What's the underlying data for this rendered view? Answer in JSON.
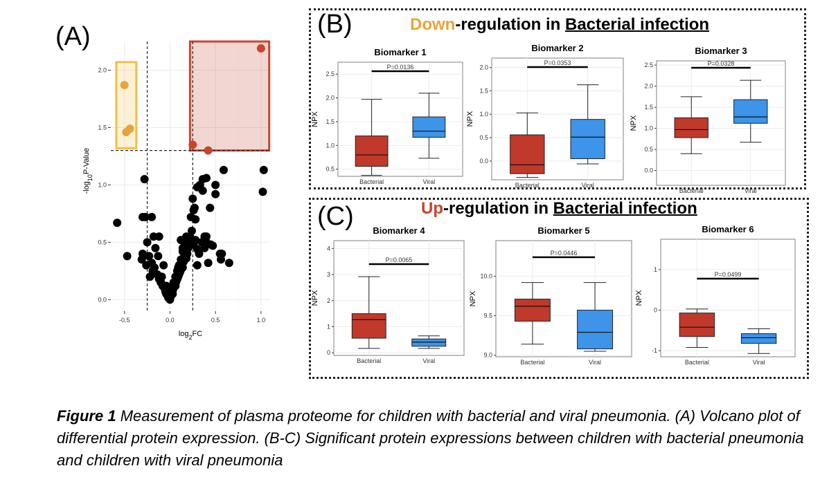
{
  "panel_labels": {
    "a": "(A)",
    "b": "(B)",
    "c": "(C)"
  },
  "section_b": {
    "highlight": "Down",
    "rest": "-regulation in ",
    "underlined": "Bacterial infection",
    "highlight_color": "#e6a53a"
  },
  "section_c": {
    "highlight": "Up",
    "rest": "-regulation in ",
    "underlined": "Bacterial infection",
    "highlight_color": "#c6452f"
  },
  "caption": {
    "lead": "Figure 1",
    "text": " Measurement of plasma proteome for children with bacterial and viral pneumonia. (A) Volcano plot of differential protein expression. (B-C) Significant protein expressions between children with bacterial pneumonia and children with viral pneumonia"
  },
  "colors": {
    "bacterial": "#c0392b",
    "viral": "#3d94e8",
    "down_box": "#f0c04a",
    "up_box": "#c6452f",
    "point": "#000000",
    "down_point": "#e6a53a",
    "up_point": "#c6452f"
  },
  "chart_data": [
    {
      "type": "scatter",
      "panel": "(A)",
      "xlabel": "log2FC",
      "ylabel": "-log10P-Value",
      "xlim": [
        -0.65,
        1.1
      ],
      "ylim": [
        -0.1,
        2.25
      ],
      "xticks": [
        -0.5,
        0.0,
        0.5,
        1.0
      ],
      "yticks": [
        0.0,
        0.5,
        1.0,
        1.5,
        2.0
      ],
      "xtick_labels": [
        "-0.5",
        "0.0",
        "0.5",
        "1.0"
      ],
      "ytick_labels": [
        "0.0",
        "0.5",
        "1.0",
        "1.5",
        "2.0"
      ],
      "thresholds": {
        "x": [
          -0.25,
          0.25
        ],
        "y": 1.3
      },
      "grid": true,
      "highlight_down": {
        "x": [
          -0.5,
          -0.48,
          -0.44
        ],
        "y": [
          1.87,
          1.46,
          1.49
        ]
      },
      "highlight_up": {
        "x": [
          1.0,
          0.25,
          0.42
        ],
        "y": [
          2.19,
          1.35,
          1.3
        ]
      },
      "points": {
        "x": [
          -0.58,
          -0.47,
          -0.3,
          -0.19,
          -0.26,
          -0.23,
          -0.31,
          -0.22,
          -0.2,
          -0.17,
          -0.14,
          -0.12,
          -0.1,
          -0.08,
          -0.06,
          -0.05,
          -0.04,
          -0.03,
          -0.02,
          -0.01,
          0.0,
          0.01,
          0.02,
          0.03,
          0.04,
          0.05,
          0.06,
          0.07,
          0.08,
          0.09,
          0.1,
          0.11,
          0.12,
          0.13,
          0.14,
          0.15,
          0.16,
          0.17,
          0.18,
          0.19,
          0.2,
          0.21,
          0.22,
          0.24,
          0.26,
          0.28,
          0.3,
          0.32,
          0.35,
          0.38,
          0.4,
          0.42,
          0.45,
          0.5,
          0.55,
          0.57,
          0.59,
          0.65,
          1.02,
          1.03,
          -0.28,
          -0.3,
          -0.25,
          -0.16,
          -0.12,
          -0.09,
          -0.07,
          -0.04,
          -0.02,
          0.0,
          0.02,
          0.04,
          0.06,
          0.08,
          0.1,
          0.12,
          0.14,
          0.16,
          0.18,
          0.2,
          0.23,
          0.25,
          0.27,
          0.3,
          0.33,
          0.36,
          0.4,
          0.44,
          -0.27,
          0.26,
          0.36,
          0.4,
          0.38,
          0.28,
          0.18,
          0.12,
          -0.2,
          -0.18,
          -0.1,
          0.06,
          0.15,
          0.22,
          0.3,
          0.47,
          0.5,
          0.56,
          -0.05,
          0.0,
          0.03,
          -0.13,
          0.09,
          0.14
        ],
        "y": [
          0.67,
          0.38,
          0.72,
          0.25,
          0.3,
          0.38,
          0.35,
          0.2,
          0.32,
          0.28,
          0.22,
          0.18,
          0.15,
          0.12,
          0.1,
          0.08,
          0.05,
          0.04,
          0.02,
          0.01,
          0.0,
          0.03,
          0.05,
          0.08,
          0.1,
          0.12,
          0.14,
          0.16,
          0.18,
          0.2,
          0.22,
          0.24,
          0.26,
          0.3,
          0.28,
          0.34,
          0.38,
          0.42,
          0.36,
          0.4,
          0.45,
          0.5,
          0.55,
          0.6,
          0.48,
          0.52,
          0.44,
          0.4,
          0.5,
          0.45,
          0.55,
          0.32,
          0.48,
          0.92,
          0.4,
          0.4,
          1.13,
          0.32,
          0.94,
          1.13,
          1.05,
          0.4,
          0.5,
          0.45,
          0.55,
          0.2,
          0.3,
          0.12,
          0.08,
          0.06,
          0.09,
          0.15,
          0.2,
          0.25,
          0.3,
          0.35,
          0.42,
          0.5,
          0.55,
          0.52,
          0.72,
          0.88,
          0.8,
          0.98,
          1.0,
          1.05,
          1.06,
          0.8,
          0.72,
          0.78,
          0.95,
          0.5,
          0.55,
          0.7,
          0.45,
          0.52,
          0.72,
          0.55,
          0.15,
          0.12,
          0.33,
          0.47,
          0.3,
          0.47,
          1.0,
          0.35,
          0.07,
          0.1,
          0.05,
          0.38,
          0.28,
          0.45
        ]
      }
    },
    {
      "type": "box",
      "panel": "(B)",
      "title": "Biomarker 1",
      "categories": [
        "Bacterial",
        "Viral"
      ],
      "ylabel": "NPX",
      "ylim": [
        0.35,
        2.75
      ],
      "yticks": [
        0.5,
        1.0,
        1.5,
        2.0,
        2.5
      ],
      "ytick_labels": [
        "0.5",
        "1.0",
        "1.5",
        "2.0",
        "2.5"
      ],
      "pvalue": "P=0.0136",
      "boxes": [
        {
          "min": 0.37,
          "q1": 0.56,
          "median": 0.8,
          "q3": 1.2,
          "max": 1.97
        },
        {
          "min": 0.73,
          "q1": 1.17,
          "median": 1.3,
          "q3": 1.6,
          "max": 2.1
        }
      ]
    },
    {
      "type": "box",
      "panel": "(B)",
      "title": "Biomarker 2",
      "categories": [
        "Bacterial",
        "Viral"
      ],
      "ylabel": "NPX",
      "ylim": [
        -0.4,
        2.2
      ],
      "yticks": [
        0.0,
        0.5,
        1.0,
        1.5,
        2.0
      ],
      "ytick_labels": [
        "0.0",
        "0.5",
        "1.0",
        "1.5",
        "2.0"
      ],
      "pvalue": "P=0.0353",
      "boxes": [
        {
          "min": -0.35,
          "q1": -0.27,
          "median": -0.08,
          "q3": 0.56,
          "max": 1.03
        },
        {
          "min": -0.06,
          "q1": 0.05,
          "median": 0.51,
          "q3": 0.89,
          "max": 1.63
        }
      ]
    },
    {
      "type": "box",
      "panel": "(B)",
      "title": "Biomarker 3",
      "categories": [
        "Bacterial",
        "Viral"
      ],
      "ylabel": "NPX",
      "ylim": [
        -0.35,
        2.6
      ],
      "yticks": [
        0.0,
        0.5,
        1.0,
        1.5,
        2.0,
        2.5
      ],
      "ytick_labels": [
        "0.0",
        "0.5",
        "1.0",
        "1.5",
        "2.0",
        "2.5"
      ],
      "pvalue": "P=0.0328",
      "boxes": [
        {
          "min": 0.4,
          "q1": 0.78,
          "median": 0.97,
          "q3": 1.25,
          "max": 1.75
        },
        {
          "min": 0.67,
          "q1": 1.12,
          "median": 1.27,
          "q3": 1.68,
          "max": 2.14
        }
      ]
    },
    {
      "type": "box",
      "panel": "(C)",
      "title": "Biomarker 4",
      "categories": [
        "Bacterial",
        "Viral"
      ],
      "ylabel": "NPX",
      "ylim": [
        -0.1,
        4.3
      ],
      "yticks": [
        0,
        1,
        2,
        3,
        4
      ],
      "ytick_labels": [
        "0",
        "1",
        "2",
        "3",
        "4"
      ],
      "pvalue": "P=0.0065",
      "boxes": [
        {
          "min": 0.17,
          "q1": 0.56,
          "median": 1.27,
          "q3": 1.5,
          "max": 2.92
        },
        {
          "min": 0.17,
          "q1": 0.25,
          "median": 0.41,
          "q3": 0.53,
          "max": 0.65
        }
      ]
    },
    {
      "type": "box",
      "panel": "(C)",
      "title": "Biomarker 5",
      "categories": [
        "Bacterial",
        "Viral"
      ],
      "ylabel": "NPX",
      "ylim": [
        8.98,
        10.45
      ],
      "yticks": [
        9.0,
        9.5,
        10.0
      ],
      "ytick_labels": [
        "9.0",
        "9.5",
        "10.0"
      ],
      "pvalue": "P=0.0446",
      "boxes": [
        {
          "min": 9.14,
          "q1": 9.43,
          "median": 9.62,
          "q3": 9.71,
          "max": 9.92
        },
        {
          "min": 9.05,
          "q1": 9.08,
          "median": 9.29,
          "q3": 9.57,
          "max": 9.92
        }
      ]
    },
    {
      "type": "box",
      "panel": "(C)",
      "title": "Biomarker 6",
      "categories": [
        "Bacterial",
        "Viral"
      ],
      "ylabel": "NPX",
      "ylim": [
        -1.15,
        1.75
      ],
      "yticks": [
        -1,
        0,
        1
      ],
      "ytick_labels": [
        "-1",
        "0",
        "1"
      ],
      "pvalue": "P=0.0499",
      "boxes": [
        {
          "min": -0.92,
          "q1": -0.65,
          "median": -0.42,
          "q3": -0.07,
          "max": 0.03
        },
        {
          "min": -1.07,
          "q1": -0.82,
          "median": -0.68,
          "q3": -0.58,
          "max": -0.46
        }
      ]
    }
  ]
}
